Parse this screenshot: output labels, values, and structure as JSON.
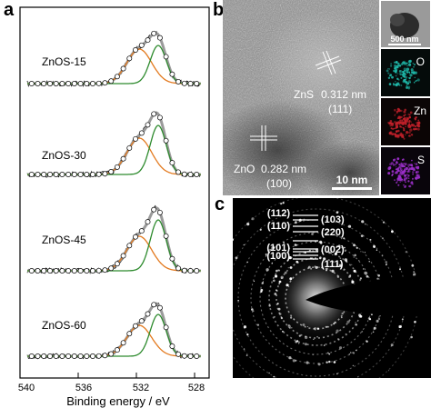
{
  "panels": {
    "a": "a",
    "b": "b",
    "c": "c"
  },
  "xps": {
    "xlabel": "Binding energy / eV",
    "xticks": [
      "540",
      "536",
      "532",
      "528"
    ],
    "samples": [
      "ZnOS-15",
      "ZnOS-30",
      "ZnOS-45",
      "ZnOS-60"
    ]
  },
  "tem": {
    "zns_label": "ZnS",
    "zns_spacing": "0.312 nm",
    "zns_plane": "(111)",
    "zno_label": "ZnO",
    "zno_spacing": "0.282 nm",
    "zno_plane": "(100)",
    "scale_main": "10 nm",
    "scale_inset": "500 nm",
    "map_labels": [
      "O",
      "Zn",
      "S"
    ],
    "colors": {
      "O": "#1fb7a8",
      "Zn": "#c0202a",
      "S": "#9b2fc9"
    }
  },
  "saed": {
    "rings": [
      "(112)",
      "(110)",
      "(101)",
      "(100)",
      "(103)",
      "(220)",
      "(002)",
      "(111)"
    ]
  },
  "chart_data": {
    "type": "line",
    "xlabel": "Binding energy / eV",
    "xlim": [
      540,
      527
    ],
    "xticks": [
      540,
      536,
      532,
      528
    ],
    "series_names": [
      "ZnOS-15",
      "ZnOS-30",
      "ZnOS-45",
      "ZnOS-60"
    ],
    "components": [
      {
        "sample": "ZnOS-15",
        "peaks": [
          {
            "center": 531.8,
            "color": "#e37a1f"
          },
          {
            "center": 530.5,
            "color": "#2e8b2e"
          }
        ]
      },
      {
        "sample": "ZnOS-30",
        "peaks": [
          {
            "center": 531.8,
            "color": "#e37a1f"
          },
          {
            "center": 530.5,
            "color": "#2e8b2e"
          }
        ]
      },
      {
        "sample": "ZnOS-45",
        "peaks": [
          {
            "center": 531.8,
            "color": "#e37a1f"
          },
          {
            "center": 530.5,
            "color": "#2e8b2e"
          }
        ]
      },
      {
        "sample": "ZnOS-60",
        "peaks": [
          {
            "center": 531.8,
            "color": "#e37a1f"
          },
          {
            "center": 530.5,
            "color": "#2e8b2e"
          }
        ]
      }
    ]
  }
}
